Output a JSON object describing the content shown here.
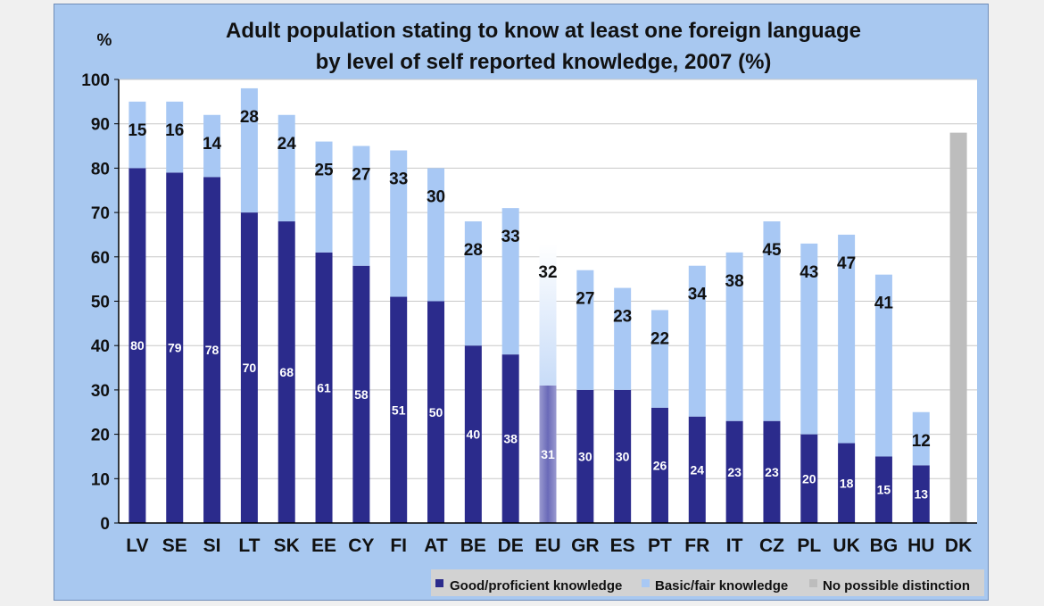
{
  "chart_data": {
    "type": "bar",
    "stacked": true,
    "title": "Adult population stating to know at least one foreign language",
    "subtitle": "by level of self reported knowledge, 2007 (%)",
    "ylabel": "%",
    "ylim": [
      0,
      100
    ],
    "yticks": [
      0,
      10,
      20,
      30,
      40,
      50,
      60,
      70,
      80,
      90,
      100
    ],
    "categories": [
      "LV",
      "SE",
      "SI",
      "LT",
      "SK",
      "EE",
      "CY",
      "FI",
      "AT",
      "BE",
      "DE",
      "EU",
      "GR",
      "ES",
      "PT",
      "FR",
      "IT",
      "CZ",
      "PL",
      "UK",
      "BG",
      "HU",
      "DK"
    ],
    "series": [
      {
        "name": "Good/proficient knowledge",
        "color": "#2b2b8c",
        "values": [
          80,
          79,
          78,
          70,
          68,
          61,
          58,
          51,
          50,
          40,
          38,
          31,
          30,
          30,
          26,
          24,
          23,
          23,
          20,
          18,
          15,
          13,
          null
        ],
        "labels": [
          "80",
          "79",
          "78",
          "70",
          "68",
          "61",
          "58",
          "51",
          "50",
          "40",
          "38",
          "31",
          "30",
          "30",
          "26",
          "24",
          "23",
          "23",
          "20",
          "18",
          "15",
          "13",
          ""
        ]
      },
      {
        "name": "Basic/fair knowledge",
        "color": "#a8c8f4",
        "values": [
          15,
          16,
          14,
          28,
          24,
          25,
          27,
          33,
          30,
          28,
          33,
          32,
          27,
          23,
          22,
          34,
          38,
          45,
          43,
          47,
          41,
          12,
          null
        ],
        "labels": [
          "15",
          "16",
          "14",
          "28",
          "24",
          "25",
          "27",
          "33",
          "30",
          "28",
          "33",
          "32",
          "27",
          "23",
          "22",
          "34",
          "38",
          "45",
          "43",
          "47",
          "41",
          "12",
          ""
        ]
      },
      {
        "name": "No possible distinction",
        "color": "#bdbdbd",
        "values": [
          null,
          null,
          null,
          null,
          null,
          null,
          null,
          null,
          null,
          null,
          null,
          null,
          null,
          null,
          null,
          null,
          null,
          null,
          null,
          null,
          null,
          null,
          88
        ]
      }
    ],
    "highlight_category": "EU",
    "legend": [
      "Good/proficient knowledge",
      "Basic/fair knowledge",
      "No possible distinction"
    ],
    "legend_position": "bottom-right"
  }
}
